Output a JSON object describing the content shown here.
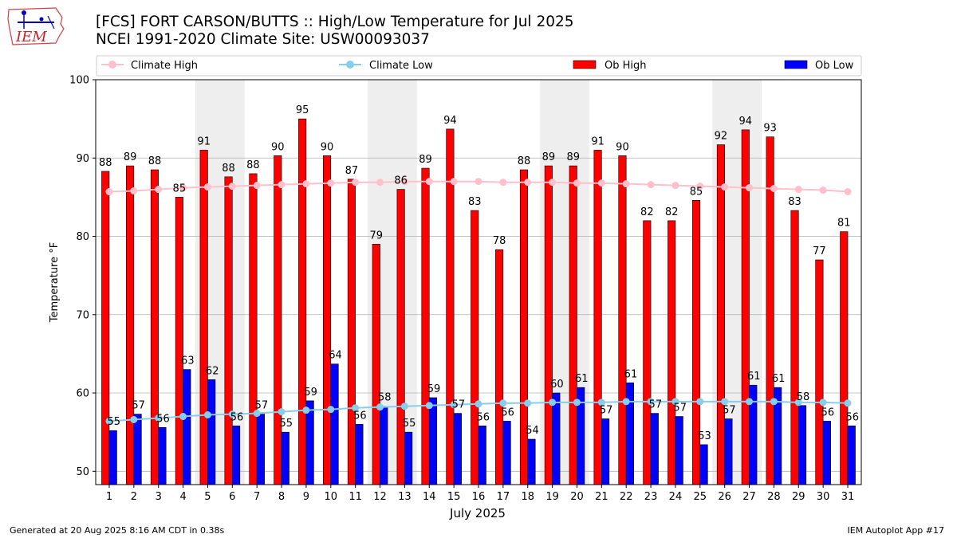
{
  "header": {
    "title_line1": "[FCS] FORT CARSON/BUTTS :: High/Low Temperature for Jul 2025",
    "title_line2": "NCEI 1991-2020 Climate Site: USW00093037",
    "logo_text": "IEM"
  },
  "footer": {
    "left": "Generated at 20 Aug 2025 8:16 AM CDT in 0.38s",
    "right": "IEM Autoplot App #17"
  },
  "colors": {
    "ob_high": "#ff0000",
    "ob_low": "#0000ff",
    "climate_high": "#ffc0cb",
    "climate_low": "#87ceeb",
    "weekend_shade": "#eeeeee",
    "grid": "#b0b0b0"
  },
  "chart_data": {
    "type": "bar",
    "title": "[FCS] FORT CARSON/BUTTS :: High/Low Temperature for Jul 2025",
    "subtitle": "NCEI 1991-2020 Climate Site: USW00093037",
    "xlabel": "July 2025",
    "ylabel": "Temperature °F",
    "ylim": [
      48.3,
      100
    ],
    "yticks": [
      50,
      60,
      70,
      80,
      90,
      100
    ],
    "grid": true,
    "legend_position": "top",
    "categories": [
      "1",
      "2",
      "3",
      "4",
      "5",
      "6",
      "7",
      "8",
      "9",
      "10",
      "11",
      "12",
      "13",
      "14",
      "15",
      "16",
      "17",
      "18",
      "19",
      "20",
      "21",
      "22",
      "23",
      "24",
      "25",
      "26",
      "27",
      "28",
      "29",
      "30",
      "31"
    ],
    "shaded_days": [
      [
        5,
        6
      ],
      [
        12,
        13
      ],
      [
        19,
        20
      ],
      [
        26,
        27
      ]
    ],
    "series": [
      {
        "name": "Ob High",
        "kind": "bar",
        "values": [
          88.3,
          89.0,
          88.5,
          85.0,
          91.0,
          87.6,
          88.0,
          90.3,
          95.0,
          90.3,
          87.3,
          79.0,
          86.0,
          88.7,
          93.7,
          83.3,
          78.3,
          88.5,
          89.0,
          89.0,
          91.0,
          90.3,
          82.0,
          82.0,
          84.6,
          91.7,
          93.6,
          92.7,
          83.3,
          77.0,
          80.6
        ],
        "labels": [
          88,
          89,
          88,
          85,
          91,
          88,
          88,
          90,
          95,
          90,
          87,
          79,
          86,
          89,
          94,
          83,
          78,
          88,
          89,
          89,
          91,
          90,
          82,
          82,
          85,
          92,
          94,
          93,
          83,
          77,
          81
        ]
      },
      {
        "name": "Ob Low",
        "kind": "bar",
        "values": [
          55.2,
          57.3,
          55.6,
          63.0,
          61.7,
          55.8,
          57.3,
          55.0,
          59.0,
          63.7,
          56.0,
          58.3,
          55.0,
          59.4,
          57.4,
          55.8,
          56.4,
          54.1,
          60.0,
          60.7,
          56.7,
          61.3,
          57.4,
          57.0,
          53.4,
          56.7,
          61.0,
          60.7,
          58.4,
          56.4,
          55.8
        ],
        "labels": [
          55,
          57,
          56,
          63,
          62,
          56,
          57,
          55,
          59,
          64,
          56,
          58,
          55,
          59,
          57,
          56,
          56,
          54,
          60,
          61,
          57,
          61,
          57,
          57,
          53,
          57,
          61,
          61,
          58,
          56,
          56
        ]
      },
      {
        "name": "Climate High",
        "kind": "line",
        "values": [
          85.7,
          85.8,
          86.0,
          86.2,
          86.3,
          86.4,
          86.5,
          86.6,
          86.7,
          86.8,
          86.9,
          86.9,
          87.0,
          87.0,
          87.0,
          87.0,
          86.9,
          86.9,
          86.9,
          86.8,
          86.8,
          86.7,
          86.6,
          86.5,
          86.4,
          86.3,
          86.2,
          86.1,
          86.0,
          85.9,
          85.7
        ]
      },
      {
        "name": "Climate Low",
        "kind": "line",
        "values": [
          56.4,
          56.6,
          56.8,
          57.0,
          57.2,
          57.3,
          57.4,
          57.6,
          57.8,
          57.9,
          58.1,
          58.2,
          58.3,
          58.4,
          58.5,
          58.6,
          58.7,
          58.7,
          58.8,
          58.8,
          58.8,
          58.9,
          58.9,
          58.9,
          58.9,
          58.9,
          58.9,
          58.9,
          58.8,
          58.8,
          58.7
        ]
      }
    ]
  }
}
